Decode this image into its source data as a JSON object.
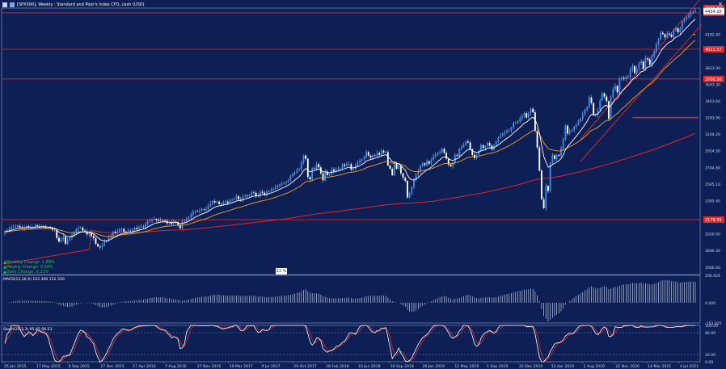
{
  "window": {
    "title": "[SPX500], Weekly : Standard and Poor's Index CFD, cash (USD)",
    "close_glyph": "×"
  },
  "legend": {
    "monthly": "Monthly Change: 1.86%",
    "weekly": "Weekly Change: 0.56%",
    "daily": "Daily Change: 0.21%"
  },
  "zoom_badge": "22 %",
  "colors": {
    "background": "#0e1f55",
    "candle": "#2f8ff0",
    "candle_wick": "#d9e2f5",
    "ema_fast": "#ffffff",
    "ema_slow": "#f2a024",
    "ema_long": "#e8212a",
    "level_line": "#e02a2a",
    "channel": "#e02a2a",
    "macd_bars": "#bfc7dc",
    "stoch_main": "#ffffff",
    "stoch_signal": "#e02a2a"
  },
  "chart_data": [
    {
      "type": "candlestick",
      "title": "[SPX500], Weekly : Standard and Poor's Index CFD, cash (USD)",
      "ylim": [
        1586.55,
        4466.82
      ],
      "y_ticks": [
        {
          "value": 4182.4,
          "label": "4182.40"
        },
        {
          "value": 3823.0,
          "label": "3823.00"
        },
        {
          "value": 3643.3,
          "label": "3643.30"
        },
        {
          "value": 3463.6,
          "label": "3463.60"
        },
        {
          "value": 3283.9,
          "label": "3283.90"
        },
        {
          "value": 3104.2,
          "label": "3104.20"
        },
        {
          "value": 2924.5,
          "label": "2924.50"
        },
        {
          "value": 2744.8,
          "label": "2744.80"
        },
        {
          "value": 2565.1,
          "label": "2565.10"
        },
        {
          "value": 2385.4,
          "label": "2385.40"
        },
        {
          "value": 2026.0,
          "label": "2026.00"
        },
        {
          "value": 1846.3,
          "label": "1846.30"
        },
        {
          "value": 1666.6,
          "label": "1666.60"
        }
      ],
      "price_labels": [
        {
          "value": 4466.82,
          "label": "4466.82",
          "color": "#e02a2a"
        },
        {
          "value": 4414.96,
          "label": "4414.96",
          "color": "#e02a2a"
        },
        {
          "value": 4021.57,
          "label": "4021.57",
          "color": "#e02a2a"
        },
        {
          "value": 3700.5,
          "label": "3700.50",
          "color": "#e02a2a"
        },
        {
          "value": 2179.55,
          "label": "2179.55",
          "color": "#e02a2a"
        },
        {
          "value": 4434.0,
          "label": "4434.00",
          "color": "#ffffff"
        }
      ],
      "horizontal_levels": [
        4414.96,
        4021.57,
        3700.5,
        2179.55
      ],
      "x_ticks": [
        "25 Jan 2015",
        "17 May 2015",
        "6 Sep 2015",
        "27 Dec 2015",
        "17 Apr 2016",
        "7 Aug 2016",
        "27 Nov 2016",
        "19 Mar 2017",
        "9 Jul 2017",
        "29 Oct 2017",
        "18 Feb 2018",
        "10 Jun 2018",
        "30 Sep 2018",
        "20 Jan 2019",
        "12 May 2019",
        "1 Sep 2019",
        "22 Dec 2019",
        "12 Apr 2020",
        "2 Aug 2020",
        "22 Nov 2020",
        "14 Mar 2021",
        "4 Jul 2021"
      ],
      "close_series": [
        2050,
        2066,
        2080,
        2098,
        2107,
        2113,
        2110,
        2098,
        2087,
        2096,
        2110,
        2100,
        2089,
        2097,
        2118,
        2108,
        2099,
        2110,
        2105,
        2092,
        2097,
        2085,
        2070,
        2065,
        1982,
        1942,
        1970,
        1995,
        1920,
        1963,
        1987,
        2013,
        2047,
        2079,
        2090,
        2094,
        2061,
        2053,
        2020,
        2037,
        2002,
        1980,
        1918,
        1890,
        1880,
        1903,
        1940,
        1950,
        1985,
        2010,
        2048,
        2036,
        2052,
        2080,
        2080,
        2050,
        2046,
        2060,
        2055,
        2070,
        2090,
        2077,
        2096,
        2105,
        2100,
        2128,
        2159,
        2170,
        2180,
        2188,
        2176,
        2166,
        2175,
        2168,
        2165,
        2140,
        2150,
        2133,
        2160,
        2152,
        2123,
        2087,
        2160,
        2164,
        2190,
        2205,
        2237,
        2265,
        2273,
        2268,
        2277,
        2290,
        2285,
        2295,
        2330,
        2352,
        2380,
        2365,
        2373,
        2350,
        2345,
        2364,
        2375,
        2360,
        2388,
        2395,
        2408,
        2432,
        2400,
        2395,
        2430,
        2440,
        2438,
        2449,
        2475,
        2470,
        2435,
        2445,
        2482,
        2470,
        2445,
        2476,
        2490,
        2502,
        2512,
        2528,
        2545,
        2560,
        2572,
        2580,
        2586,
        2605,
        2650,
        2675,
        2683,
        2720,
        2725,
        2795,
        2873,
        2838,
        2640,
        2615,
        2735,
        2730,
        2780,
        2745,
        2680,
        2605,
        2700,
        2660,
        2670,
        2721,
        2705,
        2725,
        2733,
        2735,
        2777,
        2760,
        2780,
        2780,
        2720,
        2728,
        2760,
        2800,
        2817,
        2830,
        2856,
        2910,
        2873,
        2850,
        2875,
        2870,
        2900,
        2880,
        2925,
        2905,
        2910,
        2765,
        2730,
        2660,
        2790,
        2730,
        2760,
        2680,
        2633,
        2599,
        2420,
        2470,
        2530,
        2610,
        2664,
        2705,
        2760,
        2790,
        2770,
        2810,
        2785,
        2824,
        2860,
        2880,
        2900,
        2910,
        2945,
        2900,
        2840,
        2775,
        2755,
        2800,
        2880,
        2870,
        2945,
        2970,
        2990,
        3025,
        3013,
        2940,
        2880,
        2845,
        2880,
        2926,
        2985,
        2955,
        2975,
        3008,
        2980,
        2940,
        2985,
        3025,
        3065,
        3085,
        3110,
        3125,
        3140,
        3143,
        3175,
        3223,
        3230,
        3245,
        3270,
        3300,
        3330,
        3285,
        3330,
        3380,
        3340,
        3140,
        2960,
        2710,
        2400,
        2304,
        2545,
        2490,
        2785,
        2875,
        2835,
        2880,
        2870,
        2950,
        3045,
        3195,
        3110,
        3135,
        3145,
        3185,
        3205,
        3245,
        3271,
        3320,
        3365,
        3395,
        3500,
        3440,
        3310,
        3312,
        3365,
        3470,
        3545,
        3510,
        3460,
        3270,
        3505,
        3590,
        3625,
        3555,
        3700,
        3710,
        3700,
        3725,
        3725,
        3800,
        3840,
        3765,
        3820,
        3870,
        3890,
        3809,
        3925,
        3913,
        3855,
        3945,
        3995,
        4075,
        4130,
        4200,
        4185,
        4150,
        4190,
        4180,
        4155,
        4230,
        4250,
        4205,
        4245,
        4320,
        4353,
        4370,
        4390,
        4415,
        4430,
        4435
      ]
    },
    {
      "type": "bar",
      "title": "MACD(12,26,9) 152.390 152.350",
      "ylim": [
        -153.925,
        206.926
      ],
      "y_ticks": [
        {
          "value": 206.926,
          "label": "206.926"
        },
        {
          "value": 0,
          "label": "0.000"
        },
        {
          "value": -153.925,
          "label": "-153.925"
        }
      ]
    },
    {
      "type": "line",
      "title": "Stoch(20,3,3) 95.85 96.53",
      "ylim": [
        0,
        100
      ],
      "y_ticks": [
        {
          "value": 100,
          "label": "100.00"
        },
        {
          "value": 80,
          "label": "80.00"
        },
        {
          "value": 20,
          "label": "20.00"
        },
        {
          "value": 0,
          "label": "0.00"
        }
      ]
    }
  ]
}
